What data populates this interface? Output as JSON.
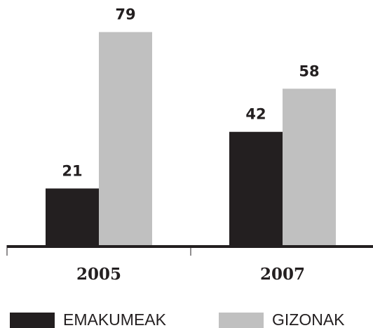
{
  "chart_data": {
    "type": "bar",
    "categories": [
      "2005",
      "2007"
    ],
    "series": [
      {
        "name": "EMAKUMEAK",
        "color": "#231f20",
        "values": [
          21,
          42
        ]
      },
      {
        "name": "GIZONAK",
        "color": "#c0c0c0",
        "values": [
          79,
          58
        ]
      }
    ]
  }
}
